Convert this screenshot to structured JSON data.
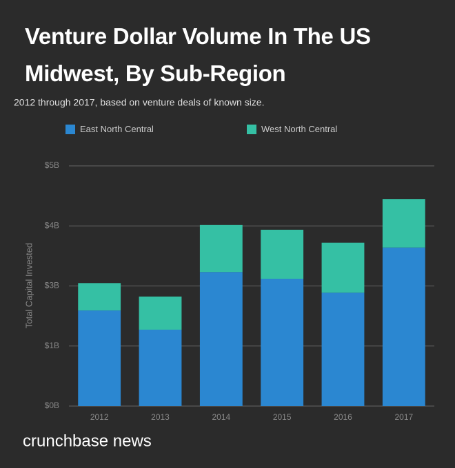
{
  "chart_data": {
    "type": "stacked_bar",
    "title": "Venture Dollar Volume In The US Midwest, By Sub-Region",
    "subtitle": "2012 through 2017, based on venture deals of known size.",
    "y_label": "Total Capital Invested",
    "categories": [
      "2012",
      "2013",
      "2014",
      "2015",
      "2016",
      "2017"
    ],
    "series": [
      {
        "name": "East North Central",
        "color": "#2b87d1",
        "values": [
          1.99,
          1.59,
          2.79,
          2.65,
          2.36,
          3.3
        ]
      },
      {
        "name": "West North Central",
        "color": "#35c0a4",
        "values": [
          0.57,
          0.69,
          0.98,
          1.02,
          1.04,
          1.01
        ]
      }
    ],
    "ylim": [
      0,
      5
    ],
    "yticks": [
      {
        "value": 0,
        "label": "$0B"
      },
      {
        "value": 1.25,
        "label": "$1B"
      },
      {
        "value": 2.5,
        "label": "$3B"
      },
      {
        "value": 3.75,
        "label": "$4B"
      },
      {
        "value": 5,
        "label": "$5B"
      }
    ],
    "grid": true,
    "legend": "top"
  },
  "footer": {
    "brand": "crunchbase news"
  }
}
